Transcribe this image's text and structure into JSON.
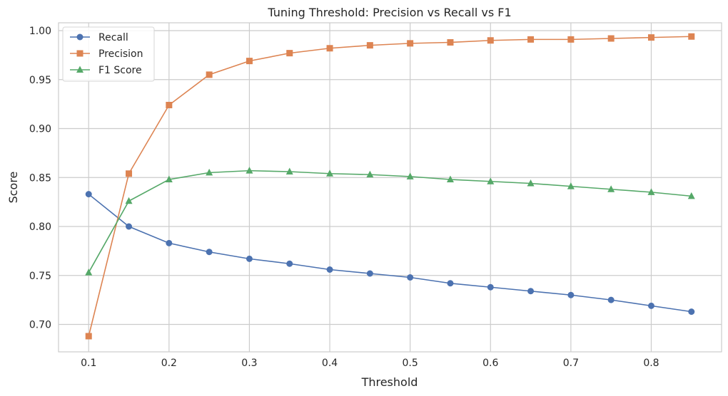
{
  "chart_data": {
    "type": "line",
    "title": "Tuning Threshold: Precision vs Recall vs F1",
    "xlabel": "Threshold",
    "ylabel": "Score",
    "x": [
      0.1,
      0.15,
      0.2,
      0.25,
      0.3,
      0.35,
      0.4,
      0.45,
      0.5,
      0.55,
      0.6,
      0.65,
      0.7,
      0.75,
      0.8,
      0.85
    ],
    "xticks": [
      "0.1",
      "0.2",
      "0.3",
      "0.4",
      "0.5",
      "0.6",
      "0.7",
      "0.8"
    ],
    "xtick_values": [
      0.1,
      0.2,
      0.3,
      0.4,
      0.5,
      0.6,
      0.7,
      0.8
    ],
    "yticks": [
      "0.70",
      "0.75",
      "0.80",
      "0.85",
      "0.90",
      "0.95",
      "1.00"
    ],
    "ytick_values": [
      0.7,
      0.75,
      0.8,
      0.85,
      0.9,
      0.95,
      1.0
    ],
    "xlim": [
      0.0625,
      0.8875
    ],
    "ylim": [
      0.672,
      1.008
    ],
    "grid": true,
    "legend_position": "top-left",
    "series": [
      {
        "name": "Recall",
        "color": "#4c72b0",
        "marker": "circle",
        "values": [
          0.833,
          0.8,
          0.783,
          0.774,
          0.767,
          0.762,
          0.756,
          0.752,
          0.748,
          0.742,
          0.738,
          0.734,
          0.73,
          0.725,
          0.719,
          0.713
        ]
      },
      {
        "name": "Precision",
        "color": "#dd8452",
        "marker": "square",
        "values": [
          0.688,
          0.854,
          0.924,
          0.955,
          0.969,
          0.977,
          0.982,
          0.985,
          0.987,
          0.988,
          0.99,
          0.991,
          0.991,
          0.992,
          0.993,
          0.994
        ]
      },
      {
        "name": "F1 Score",
        "color": "#55a868",
        "marker": "triangle",
        "values": [
          0.753,
          0.826,
          0.848,
          0.855,
          0.857,
          0.856,
          0.854,
          0.853,
          0.851,
          0.848,
          0.846,
          0.844,
          0.841,
          0.838,
          0.835,
          0.831
        ]
      }
    ]
  }
}
